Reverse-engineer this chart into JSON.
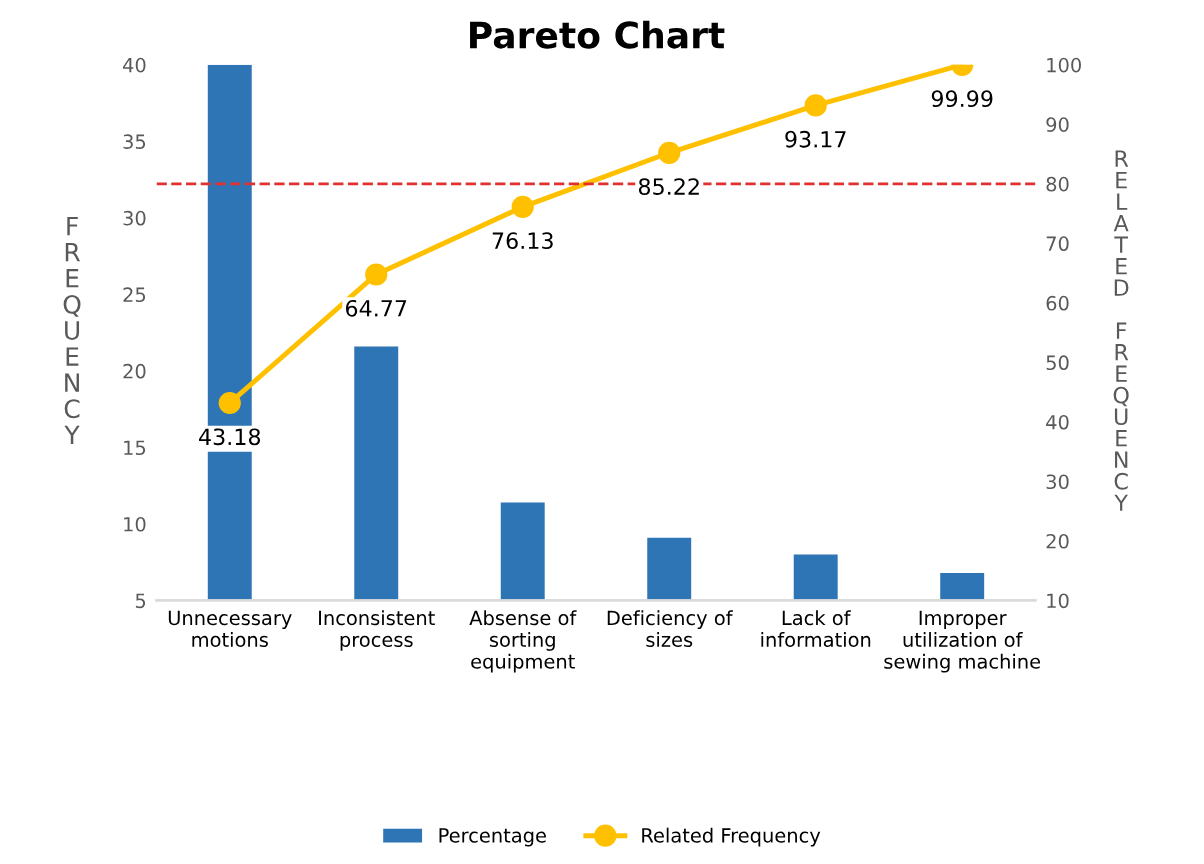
{
  "chart_data": {
    "type": "bar",
    "title": "Pareto Chart",
    "ylabel": "FREQUENCY",
    "y2label": "RELATED FREQUENCY",
    "categories": [
      "Unnecessary\nmotions",
      "Inconsistent\nprocess",
      "Absense of\nsorting\nequipment",
      "Deficiency of\nsizes",
      "Lack of\ninformation",
      "Improper\nutilization of\nsewing machine"
    ],
    "series": [
      {
        "name": "Percentage",
        "color": "#2e75b6",
        "values": [
          40,
          21.6,
          11.4,
          9.1,
          8.0,
          6.8
        ]
      },
      {
        "name": "Related Frequency",
        "type": "line",
        "axis": "y2",
        "color": "#ffc000",
        "marker": "circle",
        "values": [
          43.18,
          64.77,
          76.13,
          85.22,
          93.17,
          99.99
        ],
        "value_labels": [
          "43.18",
          "64.77",
          "76.13",
          "85.22",
          "93.17",
          "99.99"
        ]
      }
    ],
    "ylim": [
      5,
      40
    ],
    "yticks": [
      5,
      10,
      15,
      20,
      25,
      30,
      35,
      40
    ],
    "y2lim": [
      10,
      100
    ],
    "y2ticks": [
      10,
      20,
      30,
      40,
      50,
      60,
      70,
      80,
      90,
      100
    ],
    "ref_lines": [
      {
        "axis": "y2",
        "value": 80,
        "color": "#e03030",
        "line_style": "dashed"
      }
    ],
    "grid": false,
    "legend": "bottom"
  }
}
